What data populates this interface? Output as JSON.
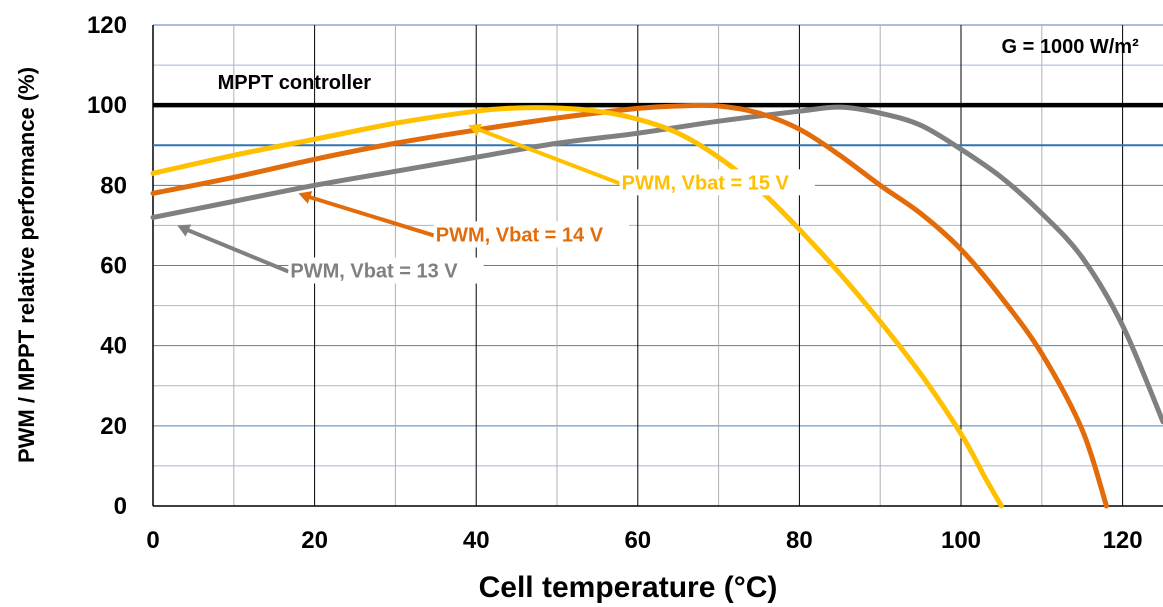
{
  "chart_data": {
    "type": "line",
    "title": "",
    "xlabel": "Cell temperature (°C)",
    "ylabel": "PWM / MPPT relative performance (%)",
    "xlim": [
      0,
      125
    ],
    "ylim": [
      0,
      120
    ],
    "xticks": [
      0,
      20,
      40,
      60,
      80,
      100,
      120
    ],
    "yticks": [
      0,
      20,
      40,
      60,
      80,
      100,
      120
    ],
    "grid": true,
    "reference_lines": [
      {
        "name": "MPPT controller",
        "y": 100,
        "color": "#000000"
      },
      {
        "y": 90,
        "color": "#2e75b6"
      }
    ],
    "series": [
      {
        "name": "PWM, Vbat = 15 V",
        "color": "#ffc000",
        "x": [
          0,
          10,
          20,
          30,
          40,
          45,
          50,
          55,
          60,
          65,
          70,
          75,
          80,
          85,
          90,
          95,
          100,
          103,
          105
        ],
        "y": [
          83,
          87.5,
          91.5,
          95.5,
          98.5,
          99.3,
          99.3,
          98.5,
          96.5,
          93,
          87,
          79,
          69,
          58,
          46,
          33,
          18,
          7,
          0
        ]
      },
      {
        "name": "PWM, Vbat = 14 V",
        "color": "#e36c0a",
        "x": [
          0,
          10,
          20,
          30,
          40,
          50,
          60,
          65,
          70,
          75,
          80,
          85,
          90,
          95,
          100,
          105,
          110,
          115,
          118
        ],
        "y": [
          78,
          82,
          86.5,
          90.5,
          93.8,
          96.8,
          99.2,
          99.8,
          99.8,
          98,
          94,
          87.5,
          80,
          73,
          64,
          52,
          38,
          19,
          0
        ]
      },
      {
        "name": "PWM, Vbat = 13 V",
        "color": "#808080",
        "x": [
          0,
          10,
          20,
          30,
          40,
          50,
          60,
          70,
          80,
          85,
          90,
          95,
          100,
          105,
          110,
          115,
          120,
          125
        ],
        "y": [
          72,
          76,
          80,
          83.5,
          87,
          90.5,
          93,
          96,
          98.5,
          99.5,
          98,
          95,
          89,
          82,
          73,
          62,
          45,
          21
        ]
      }
    ],
    "annotations": [
      {
        "text": "G = 1000 W/m²",
        "x": 122,
        "y": 113,
        "color": "#000000"
      },
      {
        "text": "MPPT controller",
        "x": 8,
        "y": 104,
        "color": "#000000"
      },
      {
        "text": "PWM, Vbat = 15 V",
        "x": 58,
        "y": 79,
        "color": "#ffc000",
        "arrow_to": [
          39,
          95
        ]
      },
      {
        "text": "PWM, Vbat = 14 V",
        "x": 35,
        "y": 66,
        "color": "#e36c0a",
        "arrow_to": [
          18,
          78
        ]
      },
      {
        "text": "PWM, Vbat = 13 V",
        "x": 17,
        "y": 57,
        "color": "#808080",
        "arrow_to": [
          3,
          70
        ]
      }
    ]
  }
}
